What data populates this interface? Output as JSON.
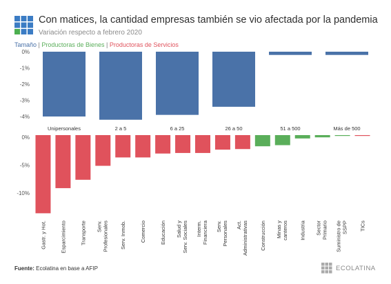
{
  "header": {
    "title": "Con matices, la cantidad empresas también se vio afectada por la pandemia",
    "subtitle": "Variación respecto a febrero 2020"
  },
  "legend": {
    "size_label": "Tamaño",
    "separator": "|",
    "goods_label": "Productoras de Bienes",
    "services_label": "Productoras de Servicios"
  },
  "colors": {
    "size": "#4a72a8",
    "goods": "#5aae5a",
    "services": "#e0525c",
    "accent_logo_blue": "#3b7cc4",
    "accent_logo_green": "#4caf50"
  },
  "footer": {
    "source_label": "Fuente:",
    "source_text": "Ecolatina en base a AFIP"
  },
  "brand": {
    "name": "ECOLATINA"
  },
  "chart_data": [
    {
      "type": "bar",
      "categories": [
        "Unipersonales",
        "2 a 5",
        "6 a 25",
        "26 a 50",
        "51 a 500",
        "Más de 500"
      ],
      "values": [
        -4.0,
        -4.2,
        -3.9,
        -3.4,
        -0.2,
        -0.2
      ],
      "y_ticks": [
        "0%",
        "-1%",
        "-2%",
        "-3%",
        "-4%"
      ],
      "ylim": [
        -4.3,
        0
      ]
    },
    {
      "type": "bar",
      "categories": [
        "Gastr. y Hot.",
        "Esparcimiento",
        "Transporte",
        "Serv. Profesionales",
        "Serv. Inmob.",
        "Comercio",
        "Educación",
        "Salud y Serv. Sociales",
        "Interm. Financiera",
        "Serv. Personales",
        "Act. Administrativas",
        "Construcción",
        "Minas y canteros",
        "Industria",
        "Sector Primario",
        "Suministro de SSPP",
        "TICs"
      ],
      "values": [
        -14.0,
        -9.5,
        -8.0,
        -5.5,
        -4.0,
        -4.0,
        -3.3,
        -3.2,
        -3.2,
        -2.6,
        -2.5,
        -2.0,
        -1.8,
        -0.6,
        -0.4,
        -0.1,
        -0.1
      ],
      "sector_group": [
        "services",
        "services",
        "services",
        "services",
        "services",
        "services",
        "services",
        "services",
        "services",
        "services",
        "services",
        "goods",
        "goods",
        "goods",
        "goods",
        "goods",
        "services"
      ],
      "y_ticks": [
        "0%",
        "-5%",
        "-10%"
      ],
      "ylim": [
        -14.5,
        0
      ]
    }
  ]
}
